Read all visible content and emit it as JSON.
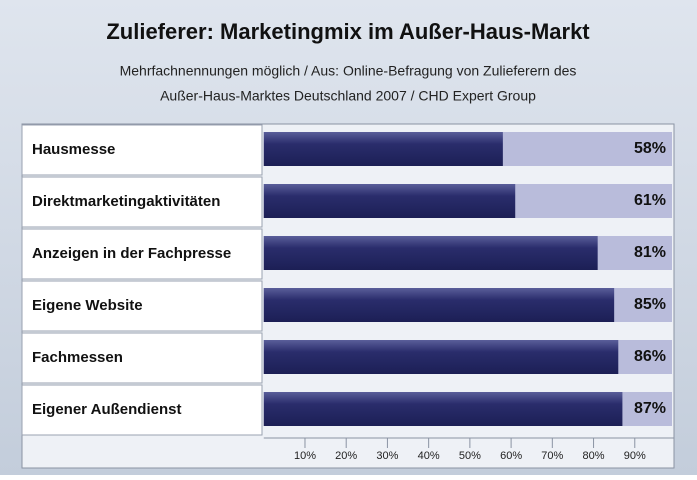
{
  "chart_data": {
    "type": "hbar",
    "title": "Zulieferer: Marketingmix im Außer-Haus-Markt",
    "subtitle": [
      "Mehrfachnennungen möglich / Aus: Online-Befragung von Zulieferern des",
      "Außer-Haus-Marktes Deutschland 2007 / CHD Expert Group"
    ],
    "categories": [
      "Hausmesse",
      "Direktmarketingaktivitäten",
      "Anzeigen in der Fachpresse",
      "Eigene Website",
      "Fachmessen",
      "Eigener Außendienst"
    ],
    "values": [
      58,
      61,
      81,
      85,
      86,
      87
    ],
    "value_labels": [
      "58%",
      "61%",
      "81%",
      "85%",
      "86%",
      "87%"
    ],
    "color": "#2a2d6c",
    "track_color": "#b9bcdb",
    "xlim": [
      0,
      100
    ],
    "xticks": [
      {
        "value": 10,
        "label": "10%"
      },
      {
        "value": 20,
        "label": "20%"
      },
      {
        "value": 30,
        "label": "30%"
      },
      {
        "value": 40,
        "label": "40%"
      },
      {
        "value": 50,
        "label": "50%"
      },
      {
        "value": 60,
        "label": "60%"
      },
      {
        "value": 70,
        "label": "70%"
      },
      {
        "value": 80,
        "label": "80%"
      },
      {
        "value": 90,
        "label": "90%"
      }
    ]
  }
}
